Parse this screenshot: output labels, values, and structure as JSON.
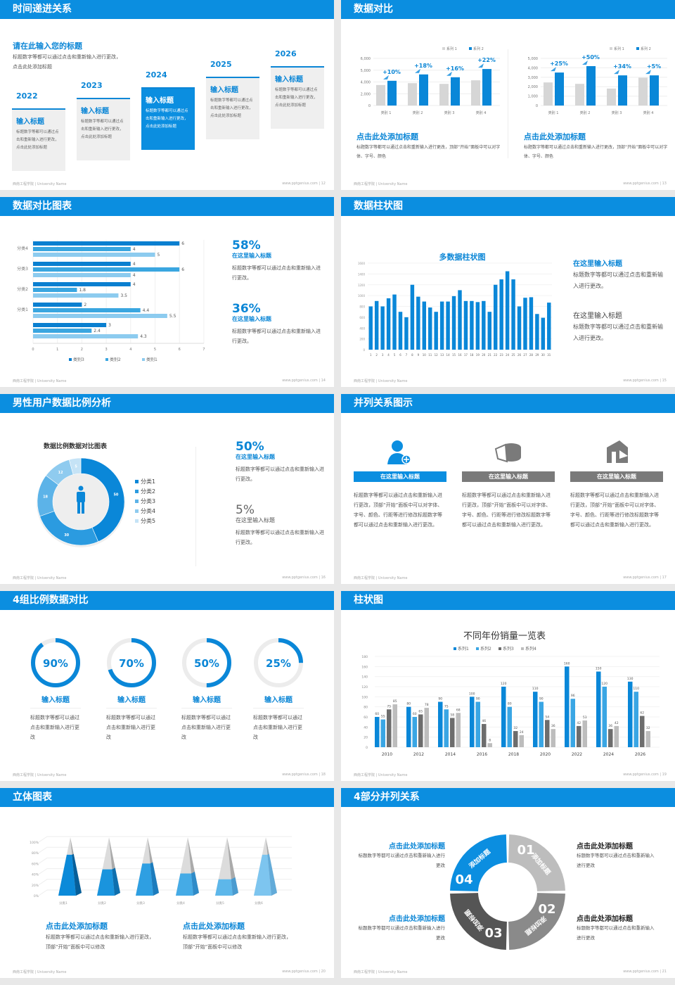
{
  "footer": {
    "left": "西南工程学院 | University Name",
    "right": "www.pptgenius.com"
  },
  "colors": {
    "brand": "#0b8ee0",
    "gray": "#d4d4d4",
    "dark_gray": "#555555"
  },
  "slides": [
    {
      "title": "时间递进关系",
      "page": "12",
      "heading": "请在此输入您的标题",
      "desc": "标题数字等都可以通过点击和重新输入进行更改，点击此处添加标题",
      "items": [
        {
          "year": "2022",
          "title": "输入标题",
          "text": "标题数字等都可以通过点击和重新输入进行更改，点击此处添加标题"
        },
        {
          "year": "2023",
          "title": "输入标题",
          "text": "标题数字等都可以通过点击和重新输入进行更改，点击此处添加标题"
        },
        {
          "year": "2024",
          "title": "输入标题",
          "text": "标题数字等都可以通过点击和重新输入进行更改，点击此处添加标题"
        },
        {
          "year": "2025",
          "title": "输入标题",
          "text": "标题数字等都可以通过点击和重新输入进行更改，点击此处添加标题"
        },
        {
          "year": "2026",
          "title": "输入标题",
          "text": "标题数字等都可以通过点击和重新输入进行更改，点击此处添加标题"
        }
      ]
    },
    {
      "title": "数据对比",
      "page": "13",
      "blocks": [
        {
          "title": "点击此处添加标题",
          "text": "标题数字等都可以通过点击和重新输入进行更改，顶部“开始”面板中可以对字体、字号、颜色"
        },
        {
          "title": "点击此处添加标题",
          "text": "标题数字等都可以通过点击和重新输入进行更改，顶部“开始”面板中可以对字体、字号、颜色"
        }
      ]
    },
    {
      "title": "数据对比图表",
      "page": "14",
      "stats": [
        {
          "value": "58%",
          "title": "在这里输入标题",
          "text": "标题数字等都可以通过点击和重新输入进行更改。"
        },
        {
          "value": "36%",
          "title": "在这里输入标题",
          "text": "标题数字等都可以通过点击和重新输入进行更改。"
        }
      ]
    },
    {
      "title": "数据柱状图",
      "page": "15",
      "blocks": [
        {
          "title": "在这里输入标题",
          "text": "标题数字等都可以通过点击和重新输入进行更改。"
        },
        {
          "title": "在这里输入标题",
          "text": "标题数字等都可以通过点击和重新输入进行更改。"
        }
      ]
    },
    {
      "title": "男性用户数据比例分析",
      "page": "16",
      "stats": [
        {
          "value": "50%",
          "title": "在这里输入标题",
          "text": "标题数字等都可以通过点击和重新输入进行更改。"
        },
        {
          "value": "5%",
          "title": "在这里输入标题",
          "text": "标题数字等都可以通过点击和重新输入进行更改。"
        }
      ]
    },
    {
      "title": "并列关系图示",
      "page": "17",
      "items": [
        {
          "icon": "user-add-icon",
          "label": "在这里输入标题",
          "text": "标题数字等都可以通过点击和重新输入进行更改，顶部“开始”面板中可以对字体、字号、颜色、行距等进行修改标题数字等都可以通过点击和重新输入进行更改。"
        },
        {
          "icon": "pie-chart-icon",
          "label": "在这里输入标题",
          "text": "标题数字等都可以通过点击和重新输入进行更改，顶部“开始”面板中可以对字体、字号、颜色、行距等进行修改标题数字等都可以通过点击和重新输入进行更改。"
        },
        {
          "icon": "building-icon",
          "label": "在这里输入标题",
          "text": "标题数字等都可以通过点击和重新输入进行更改，顶部“开始”面板中可以对字体、字号、颜色、行距等进行修改标题数字等都可以通过点击和重新输入进行更改。"
        }
      ]
    },
    {
      "title": "4组比例数据对比",
      "page": "18",
      "rings": [
        {
          "value": 90,
          "label": "90%",
          "title": "输入标题",
          "text": "标题数字等都可以通过点击和重新输入进行更改"
        },
        {
          "value": 70,
          "label": "70%",
          "title": "输入标题",
          "text": "标题数字等都可以通过点击和重新输入进行更改"
        },
        {
          "value": 50,
          "label": "50%",
          "title": "输入标题",
          "text": "标题数字等都可以通过点击和重新输入进行更改"
        },
        {
          "value": 25,
          "label": "25%",
          "title": "输入标题",
          "text": "标题数字等都可以通过点击和重新输入进行更改"
        }
      ]
    },
    {
      "title": "柱状图",
      "page": "19"
    },
    {
      "title": "立体图表",
      "page": "20",
      "blocks": [
        {
          "title": "点击此处添加标题",
          "text": "标题数字等都可以通过点击和重新输入进行更改，顶部“开始”面板中可以修改"
        },
        {
          "title": "点击此处添加标题",
          "text": "标题数字等都可以通过点击和重新输入进行更改，顶部“开始”面板中可以修改"
        }
      ]
    },
    {
      "title": "4部分并列关系",
      "page": "21",
      "segments": [
        {
          "num": "01",
          "label": "添加标题"
        },
        {
          "num": "02",
          "label": "添加标题"
        },
        {
          "num": "03",
          "label": "添加标题"
        },
        {
          "num": "04",
          "label": "添加标题"
        }
      ],
      "blocks": [
        {
          "title": "点击此处添加标题",
          "text": "标题数字等都可以通过点击和重新输入进行更改"
        },
        {
          "title": "点击此处添加标题",
          "text": "标题数字等都可以通过点击和重新输入进行更改"
        },
        {
          "title": "点击此处添加标题",
          "text": "标题数字等都可以通过点击和重新输入进行更改"
        },
        {
          "title": "点击此处添加标题",
          "text": "标题数字等都可以通过点击和重新输入进行更改"
        }
      ]
    }
  ],
  "chart_data": [
    {
      "type": "bar",
      "categories": [
        "类别 1",
        "类别 2",
        "类别 3",
        "类别 4"
      ],
      "yticks": [
        0,
        2000,
        4000,
        5000,
        6000
      ],
      "ytick_labels": [
        "0",
        "2,000",
        "4,000",
        "5,000",
        "6,000"
      ],
      "series": [
        {
          "name": "系列 1",
          "values": [
            3480,
            3800,
            3680,
            4140
          ]
        },
        {
          "name": "系列 2",
          "values": [
            4100,
            4640,
            4400,
            5100
          ]
        }
      ],
      "annotations": [
        "+10%",
        "+18%",
        "+16%",
        "+22%"
      ],
      "legend": "top-right",
      "grid": true
    },
    {
      "type": "bar",
      "categories": [
        "类别 1",
        "类别 2",
        "类别 3",
        "类别 4"
      ],
      "yticks": [
        0,
        1000,
        2000,
        3000,
        4000,
        5000
      ],
      "ytick_labels": [
        "0",
        "1,000",
        "2,000",
        "3,000",
        "4,000",
        "5,000"
      ],
      "series": [
        {
          "name": "系列 1",
          "values": [
            2450,
            2300,
            1800,
            2950
          ]
        },
        {
          "name": "系列 2",
          "values": [
            3500,
            4180,
            3200,
            3200
          ]
        }
      ],
      "annotations": [
        "+25%",
        "+50%",
        "+34%",
        "+5%"
      ],
      "legend": "top-right",
      "grid": true
    },
    {
      "type": "bar",
      "orientation": "horizontal",
      "categories": [
        "分类4",
        "分类3",
        "分类2",
        "分类1",
        ""
      ],
      "xlim": [
        0,
        7
      ],
      "xticks": [
        "0",
        "1",
        "2",
        "3",
        "4",
        "5",
        "6",
        "7"
      ],
      "series": [
        {
          "name": "类别3",
          "values": [
            6,
            4,
            4,
            2,
            3
          ]
        },
        {
          "name": "类别2",
          "values": [
            4,
            6,
            1.8,
            4.4,
            2.4
          ]
        },
        {
          "name": "类别1",
          "values": [
            5,
            4,
            3.5,
            5.5,
            4.3
          ]
        }
      ],
      "legend": "bottom",
      "grid": true
    },
    {
      "type": "bar",
      "title": "多数据柱状图",
      "ylim": [
        0,
        1600
      ],
      "yticks": [
        "0",
        "200",
        "400",
        "600",
        "800",
        "1000",
        "1200",
        "1400",
        "1600"
      ],
      "categories": [
        "1",
        "2",
        "3",
        "4",
        "5",
        "6",
        "7",
        "8",
        "9",
        "10",
        "11",
        "12",
        "13",
        "14",
        "15",
        "16",
        "17",
        "18",
        "19",
        "20",
        "21",
        "22",
        "23",
        "24",
        "25",
        "26",
        "27",
        "28",
        "29",
        "30",
        "31"
      ],
      "values": [
        800,
        900,
        800,
        950,
        1020,
        700,
        600,
        1200,
        980,
        890,
        780,
        700,
        890,
        890,
        990,
        1100,
        900,
        900,
        880,
        900,
        700,
        1200,
        1300,
        1450,
        1300,
        800,
        960,
        970,
        660,
        590,
        870
      ],
      "grid": true
    },
    {
      "type": "pie",
      "variant": "donut",
      "title": "数据比例数据对比图表",
      "categories": [
        "分类1",
        "分类2",
        "分类3",
        "分类4",
        "分类5"
      ],
      "values": [
        50,
        30,
        18,
        12,
        5
      ],
      "legend": "right"
    },
    {
      "type": "bar",
      "title": "不同年份销量一览表",
      "ylim": [
        0,
        180
      ],
      "yticks": [
        "0",
        "20",
        "40",
        "60",
        "80",
        "100",
        "120",
        "140",
        "160",
        "180"
      ],
      "categories": [
        "2010",
        "2012",
        "2014",
        "2016",
        "2018",
        "2020",
        "2022",
        "2024",
        "2026"
      ],
      "series": [
        {
          "name": "系列1",
          "values": [
            60,
            80,
            90,
            100,
            120,
            110,
            160,
            150,
            130
          ]
        },
        {
          "name": "系列2",
          "values": [
            55,
            60,
            75,
            90,
            80,
            90,
            96,
            120,
            110
          ]
        },
        {
          "name": "系列3",
          "values": [
            75,
            65,
            58,
            46,
            32,
            54,
            42,
            36,
            62
          ]
        },
        {
          "name": "系列4",
          "values": [
            85,
            78,
            68,
            8,
            24,
            36,
            53,
            42,
            32
          ]
        }
      ],
      "legend": "top",
      "grid": true
    },
    {
      "type": "bar",
      "variant": "3d-pyramid",
      "ylim": [
        0,
        100
      ],
      "yticks": [
        "0%",
        "20%",
        "40%",
        "60%",
        "80%",
        "100%"
      ],
      "categories": [
        "分类1",
        "分类2",
        "分类3",
        "分类4",
        "分类5",
        "分类6"
      ],
      "values": [
        70,
        45,
        55,
        38,
        28,
        70
      ],
      "grid": true
    }
  ]
}
